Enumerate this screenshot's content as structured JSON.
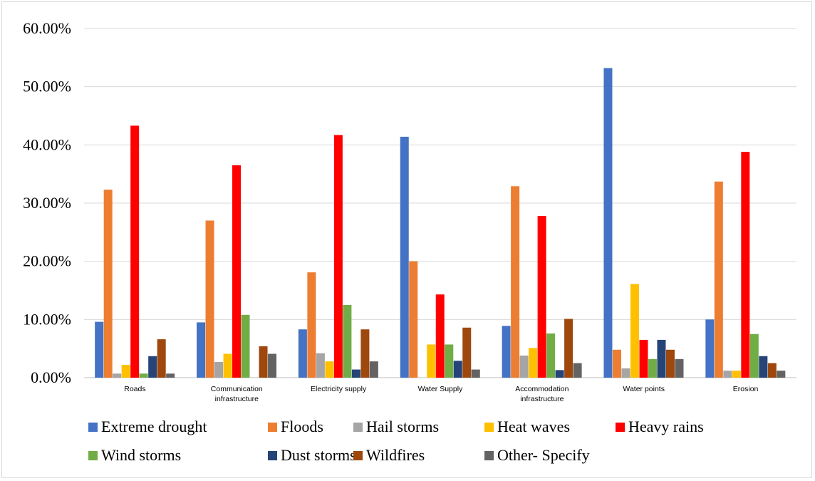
{
  "chart_data": {
    "type": "bar",
    "title": "",
    "xlabel": "",
    "ylabel": "",
    "ylim": [
      0,
      60
    ],
    "yticks": [
      "0.00%",
      "10.00%",
      "20.00%",
      "30.00%",
      "40.00%",
      "50.00%",
      "60.00%"
    ],
    "grid": true,
    "legend_position": "bottom",
    "categories": [
      [
        "Roads"
      ],
      [
        "Communication",
        "infrastructure"
      ],
      [
        "Electricity supply"
      ],
      [
        "Water Supply"
      ],
      [
        "Accommodation",
        "infrastructure"
      ],
      [
        "Water points"
      ],
      [
        "Erosion"
      ]
    ],
    "series": [
      {
        "name": "Extreme drought",
        "color": "#4472C4",
        "values": [
          9.6,
          9.5,
          8.3,
          41.4,
          8.9,
          53.2,
          10.0
        ]
      },
      {
        "name": "Floods",
        "color": "#ED7D31",
        "values": [
          32.3,
          27.0,
          18.1,
          20.0,
          32.9,
          4.8,
          33.7
        ]
      },
      {
        "name": "Hail storms",
        "color": "#A5A5A5",
        "values": [
          0.7,
          2.7,
          4.2,
          0.0,
          3.8,
          1.6,
          1.2
        ]
      },
      {
        "name": "Heat waves",
        "color": "#FFC000",
        "values": [
          2.2,
          4.1,
          2.8,
          5.7,
          5.1,
          16.1,
          1.2
        ]
      },
      {
        "name": "Heavy rains",
        "color": "#FF0000",
        "values": [
          43.3,
          36.5,
          41.7,
          14.3,
          27.8,
          6.5,
          38.8
        ]
      },
      {
        "name": "Wind storms",
        "color": "#70AD47",
        "values": [
          0.7,
          10.8,
          12.5,
          5.7,
          7.6,
          3.2,
          7.5
        ]
      },
      {
        "name": "Dust storms",
        "color": "#264478",
        "values": [
          3.7,
          0.0,
          1.4,
          2.9,
          1.3,
          6.5,
          3.7
        ]
      },
      {
        "name": "Wildfires",
        "color": "#9E480E",
        "values": [
          6.6,
          5.4,
          8.3,
          8.6,
          10.1,
          4.8,
          2.5
        ]
      },
      {
        "name": "Other- Specify",
        "color": "#636363",
        "values": [
          0.7,
          4.1,
          2.8,
          1.4,
          2.5,
          3.2,
          1.2
        ]
      }
    ]
  }
}
